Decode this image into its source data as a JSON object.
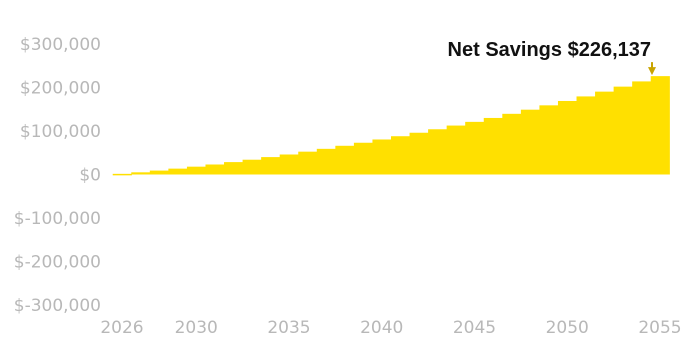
{
  "chart_data": {
    "type": "bar",
    "title": "",
    "xlabel": "",
    "ylabel": "",
    "ylim": [
      -300000,
      300000
    ],
    "xlim": [
      2026,
      2055
    ],
    "y_ticks": [
      300000,
      200000,
      100000,
      0,
      -100000,
      -200000,
      -300000
    ],
    "y_tick_labels": [
      "$300,000",
      "$200,000",
      "$100,000",
      "$0",
      "$-100,000",
      "$-200,000",
      "$-300,000"
    ],
    "x_ticks": [
      2026,
      2030,
      2035,
      2040,
      2045,
      2050,
      2055
    ],
    "x_tick_labels": [
      "2026",
      "2030",
      "2035",
      "2040",
      "2045",
      "2050",
      "2055"
    ],
    "grid": false,
    "legend": "none",
    "series": [
      {
        "name": "Net Savings",
        "color": "#FFE000",
        "x": [
          2026,
          2027,
          2028,
          2029,
          2030,
          2031,
          2032,
          2033,
          2034,
          2035,
          2036,
          2037,
          2038,
          2039,
          2040,
          2041,
          2042,
          2043,
          2044,
          2045,
          2046,
          2047,
          2048,
          2049,
          2050,
          2051,
          2052,
          2053,
          2054,
          2055
        ],
        "values": [
          1500,
          5000,
          9000,
          13500,
          18000,
          23000,
          28500,
          34000,
          40000,
          46000,
          52500,
          59000,
          66000,
          73000,
          80500,
          88000,
          96000,
          104000,
          112500,
          121000,
          130000,
          139500,
          149000,
          159000,
          169000,
          179500,
          190500,
          202000,
          214000,
          226137
        ]
      }
    ],
    "annotation": {
      "text": "Net Savings $226,137",
      "x": 2055,
      "y": 226137,
      "marker_color": "#C9A400"
    }
  }
}
